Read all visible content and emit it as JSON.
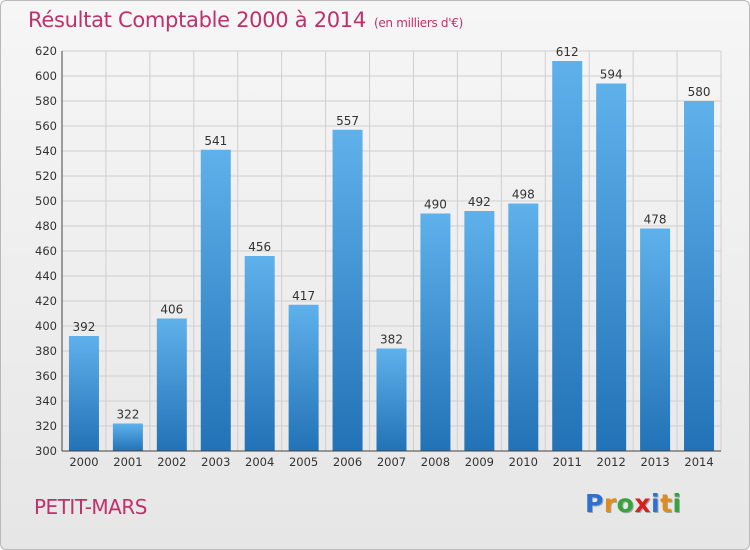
{
  "title": "Résultat Comptable 2000 à 2014",
  "unit_note": "(en milliers d'€)",
  "commune": "PETIT-MARS",
  "logo": {
    "letters": [
      "P",
      "r",
      "o",
      "x",
      "i",
      "t",
      "i"
    ],
    "colors": [
      "#2f6fd0",
      "#e08b1c",
      "#3aa23a",
      "#d82020",
      "#2f6fd0",
      "#e08b1c",
      "#3aa23a"
    ]
  },
  "colors": {
    "accent": "#c0306a",
    "bar_top": "#5eb0ea",
    "bar_bottom": "#2273b8",
    "grid": "#cfcfcf"
  },
  "chart_data": {
    "type": "bar",
    "title": "Résultat Comptable 2000 à 2014",
    "subtitle": "(en milliers d'€)",
    "xlabel": "",
    "ylabel": "",
    "categories": [
      "2000",
      "2001",
      "2002",
      "2003",
      "2004",
      "2005",
      "2006",
      "2007",
      "2008",
      "2009",
      "2010",
      "2011",
      "2012",
      "2013",
      "2014"
    ],
    "values": [
      392,
      322,
      406,
      541,
      456,
      417,
      557,
      382,
      490,
      492,
      498,
      612,
      594,
      478,
      580
    ],
    "ylim": [
      300,
      620
    ],
    "yticks": [
      300,
      320,
      340,
      360,
      380,
      400,
      420,
      440,
      460,
      480,
      500,
      520,
      540,
      560,
      580,
      600,
      620
    ],
    "grid": true,
    "data_labels": true
  }
}
